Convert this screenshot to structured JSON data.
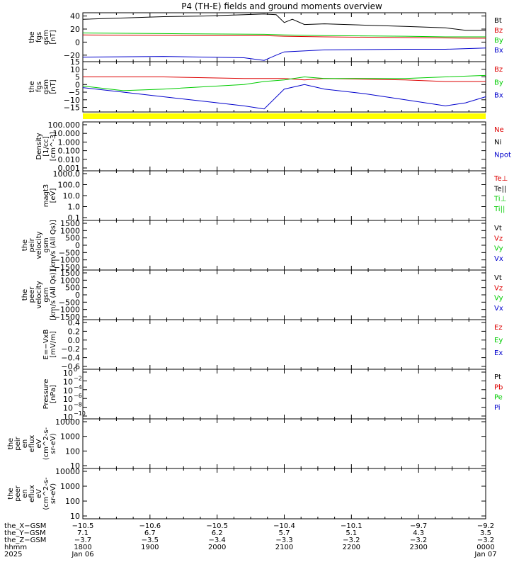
{
  "title": "P4 (TH-E) fields and ground moments overview",
  "colors": {
    "black": "#000000",
    "red": "#dd0000",
    "green": "#00cc00",
    "blue": "#0000cc",
    "yellow": "#ffff00"
  },
  "chart_data": [
    {
      "type": "line",
      "ylabel": [
        "the",
        "fgs",
        "gsm",
        "[nT]"
      ],
      "ylim": [
        -30,
        45
      ],
      "yticks": [
        40,
        20,
        0,
        -20
      ],
      "legend": [
        {
          "label": "Bt",
          "color": "black"
        },
        {
          "label": "Bz",
          "color": "red"
        },
        {
          "label": "By",
          "color": "green"
        },
        {
          "label": "Bx",
          "color": "blue"
        }
      ],
      "series": [
        {
          "name": "Bt",
          "color": "black",
          "x": [
            0,
            0.1,
            0.2,
            0.3,
            0.4,
            0.45,
            0.48,
            0.5,
            0.52,
            0.55,
            0.6,
            0.7,
            0.8,
            0.9,
            0.95,
            1
          ],
          "values": [
            35,
            37,
            39,
            40,
            42,
            43,
            42,
            30,
            35,
            27,
            28,
            26,
            24,
            22,
            18,
            18
          ]
        },
        {
          "name": "Bz",
          "color": "red",
          "x": [
            0,
            0.3,
            0.45,
            0.5,
            0.6,
            0.8,
            0.95,
            1
          ],
          "values": [
            11,
            10,
            10,
            9,
            8,
            7,
            6,
            6
          ]
        },
        {
          "name": "By",
          "color": "green",
          "x": [
            0,
            0.2,
            0.45,
            0.5,
            0.6,
            0.8,
            0.9,
            1
          ],
          "values": [
            14,
            13,
            12,
            11,
            10,
            9,
            8,
            8
          ]
        },
        {
          "name": "Bx",
          "color": "blue",
          "x": [
            0,
            0.2,
            0.4,
            0.45,
            0.48,
            0.5,
            0.6,
            0.8,
            0.9,
            1
          ],
          "values": [
            -23,
            -22,
            -24,
            -28,
            -20,
            -15,
            -12,
            -11,
            -11,
            -9
          ]
        }
      ]
    },
    {
      "type": "line",
      "ylabel": [
        "the",
        "fgs",
        "gsm",
        "[nT]"
      ],
      "ylim": [
        -18,
        15
      ],
      "yticks": [
        15,
        10,
        5,
        0,
        -5,
        -10,
        -15
      ],
      "legend": [
        {
          "label": "Bz",
          "color": "red"
        },
        {
          "label": "By",
          "color": "green"
        },
        {
          "label": "Bx",
          "color": "blue"
        }
      ],
      "series": [
        {
          "name": "Bz",
          "color": "red",
          "x": [
            0,
            0.2,
            0.4,
            0.45,
            0.5,
            0.55,
            0.6,
            0.8,
            0.9,
            1
          ],
          "values": [
            5,
            5,
            4,
            4,
            4,
            3,
            4,
            3,
            2,
            2
          ]
        },
        {
          "name": "By",
          "color": "green",
          "x": [
            0,
            0.1,
            0.2,
            0.4,
            0.45,
            0.5,
            0.55,
            0.6,
            0.7,
            0.8,
            0.9,
            1
          ],
          "values": [
            -1,
            -4,
            -3,
            0,
            2,
            3,
            5,
            4,
            4,
            4,
            5,
            6
          ]
        },
        {
          "name": "Bx",
          "color": "blue",
          "x": [
            0,
            0.1,
            0.2,
            0.3,
            0.4,
            0.45,
            0.5,
            0.55,
            0.6,
            0.7,
            0.8,
            0.9,
            0.95,
            1
          ],
          "values": [
            -2,
            -5,
            -8,
            -11,
            -14,
            -16,
            -3,
            0,
            -3,
            -6,
            -10,
            -14,
            -12,
            -8
          ]
        }
      ]
    },
    {
      "type": "line",
      "ylabel": [
        "Density",
        "[1/cc]",
        "[cm^-3]"
      ],
      "scale": "log",
      "ytick_labels": [
        "100.000",
        "10.000",
        "1.000",
        "0.100",
        "0.010",
        "0.001"
      ],
      "legend": [
        {
          "label": "Ne",
          "color": "red"
        },
        {
          "label": "Ni",
          "color": "black"
        },
        {
          "label": "Npot",
          "color": "blue"
        }
      ]
    },
    {
      "type": "line",
      "ylabel": [
        "magt3",
        "[eV]"
      ],
      "scale": "log",
      "ytick_labels": [
        "1000.0",
        "100.0",
        "10.0",
        "1.0",
        "0.1"
      ],
      "legend": [
        {
          "label": "Te⊥",
          "color": "red"
        },
        {
          "label": "Te||",
          "color": "black"
        },
        {
          "label": "Ti⊥",
          "color": "green"
        },
        {
          "label": "Ti||",
          "color": "green"
        }
      ]
    },
    {
      "type": "line",
      "ylabel": [
        "the",
        "peir",
        "velocity",
        "gsm",
        "[km/s (All Qs)]"
      ],
      "ytick_labels": [
        "1500",
        "1000",
        "500",
        "0",
        "−500",
        "−1000",
        "−1500"
      ],
      "legend": [
        {
          "label": "Vt",
          "color": "black"
        },
        {
          "label": "Vz",
          "color": "red"
        },
        {
          "label": "Vy",
          "color": "green"
        },
        {
          "label": "Vx",
          "color": "blue"
        }
      ]
    },
    {
      "type": "line",
      "ylabel": [
        "the",
        "peer",
        "velocity",
        "gsm",
        "[km/s (All Qs)]"
      ],
      "ytick_labels": [
        "1500",
        "1000",
        "500",
        "0",
        "−500",
        "−1000",
        "−1500"
      ],
      "legend": [
        {
          "label": "Vt",
          "color": "black"
        },
        {
          "label": "Vz",
          "color": "red"
        },
        {
          "label": "Vy",
          "color": "green"
        },
        {
          "label": "Vx",
          "color": "blue"
        }
      ]
    },
    {
      "type": "line",
      "ylabel": [
        "E=−VxB",
        "[mV/m]"
      ],
      "ytick_labels": [
        "0.4",
        "0.2",
        "0.0",
        "−0.2",
        "−0.4",
        "−0.6"
      ],
      "legend": [
        {
          "label": "Ez",
          "color": "red"
        },
        {
          "label": "Ey",
          "color": "green"
        },
        {
          "label": "Ex",
          "color": "blue"
        }
      ]
    },
    {
      "type": "line",
      "ylabel": [
        "Pressure",
        "[nPa]"
      ],
      "scale": "log",
      "ytick_labels": [
        "10",
        "10",
        "10",
        "10",
        "10",
        "10"
      ],
      "ytick_exponents": [
        "0",
        "−2",
        "−4",
        "−6",
        "−8",
        "−10"
      ],
      "legend": [
        {
          "label": "Pt",
          "color": "black"
        },
        {
          "label": "Pb",
          "color": "red"
        },
        {
          "label": "Pe",
          "color": "green"
        },
        {
          "label": "Pi",
          "color": "blue"
        }
      ]
    },
    {
      "type": "heatmap",
      "ylabel": [
        "the",
        "peir",
        "en",
        "eflux",
        "eV",
        "(cm^2-s-",
        "sr-eV)"
      ],
      "scale": "log",
      "ytick_labels": [
        "10000",
        "1000",
        "100",
        "10"
      ]
    },
    {
      "type": "heatmap",
      "ylabel": [
        "the",
        "peer",
        "en",
        "eflux",
        "eV",
        "(cm^2-s-",
        "sr-eV)"
      ],
      "scale": "log",
      "ytick_labels": [
        "10000",
        "1000",
        "100",
        "10"
      ]
    }
  ],
  "x_axis": {
    "row_labels": [
      "the_X−GSM",
      "the_Y−GSM",
      "the_Z−GSM",
      "hhmm",
      "2025"
    ],
    "columns": [
      [
        "−10.5",
        "7.1",
        "−3.7",
        "1800",
        "Jan 06"
      ],
      [
        "−10.6",
        "6.7",
        "−3.5",
        "1900",
        ""
      ],
      [
        "−10.5",
        "6.2",
        "−3.4",
        "2000",
        ""
      ],
      [
        "−10.4",
        "5.7",
        "−3.3",
        "2100",
        ""
      ],
      [
        "−10.1",
        "5.1",
        "−3.2",
        "2200",
        ""
      ],
      [
        "−9.7",
        "4.3",
        "−3.2",
        "2300",
        ""
      ],
      [
        "−9.2",
        "3.5",
        "−3.2",
        "0000",
        "Jan 07"
      ]
    ]
  }
}
